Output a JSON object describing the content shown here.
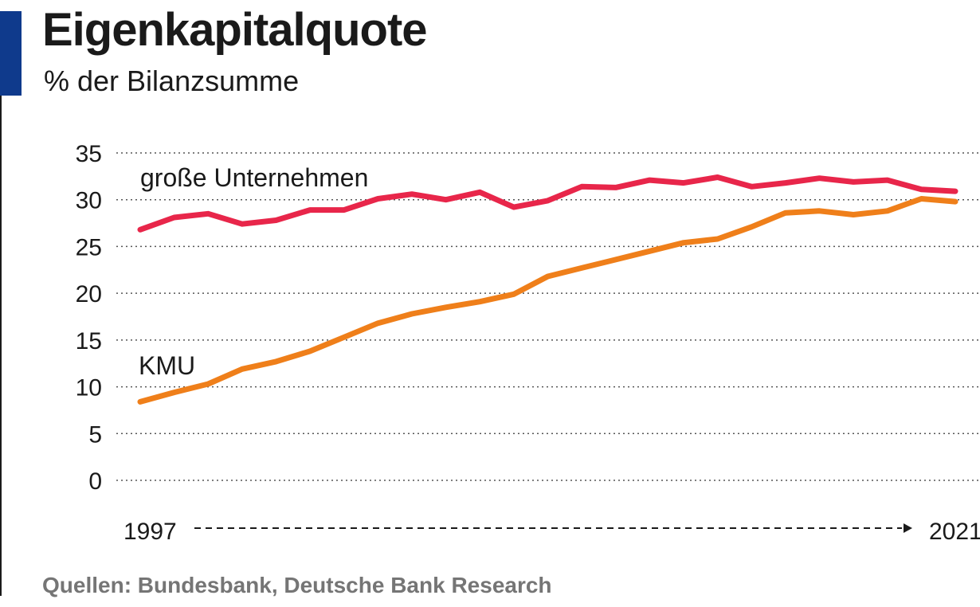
{
  "header": {
    "title": "Eigenkapitalquote",
    "subtitle": "% der Bilanzsumme"
  },
  "source": "Quellen: Bundesbank, Deutsche Bank Research",
  "colors": {
    "accent": "#0f3a8c",
    "large_companies": "#e8264a",
    "sme": "#ef7f1a",
    "text": "#1a1a1a",
    "source_text": "#757575",
    "grid": "#555555"
  },
  "chart_data": {
    "type": "line",
    "title": "Eigenkapitalquote",
    "subtitle": "% der Bilanzsumme",
    "ylim": [
      0,
      35
    ],
    "yticks": [
      0,
      5,
      10,
      15,
      20,
      25,
      30,
      35
    ],
    "grid": "horizontal dotted",
    "x_start_label": "1997",
    "x_end_label": "2021",
    "x": [
      1997,
      1998,
      1999,
      2000,
      2001,
      2002,
      2003,
      2004,
      2005,
      2006,
      2007,
      2008,
      2009,
      2010,
      2011,
      2012,
      2013,
      2014,
      2015,
      2016,
      2017,
      2018,
      2019,
      2020,
      2021
    ],
    "series": [
      {
        "name": "große Unternehmen",
        "color": "#e8264a",
        "values": [
          26.8,
          28.1,
          28.5,
          27.4,
          27.8,
          28.9,
          28.9,
          30.1,
          30.6,
          30.0,
          30.8,
          29.2,
          29.9,
          31.4,
          31.3,
          32.1,
          31.8,
          32.4,
          31.4,
          31.8,
          32.3,
          31.9,
          32.1,
          31.1,
          30.9
        ]
      },
      {
        "name": "KMU",
        "color": "#ef7f1a",
        "values": [
          8.4,
          9.4,
          10.3,
          11.9,
          12.7,
          13.8,
          15.3,
          16.8,
          17.8,
          18.5,
          19.1,
          19.9,
          21.8,
          22.7,
          23.6,
          24.5,
          25.4,
          25.8,
          27.1,
          28.6,
          28.8,
          28.4,
          28.8,
          30.1,
          29.8
        ]
      }
    ]
  }
}
